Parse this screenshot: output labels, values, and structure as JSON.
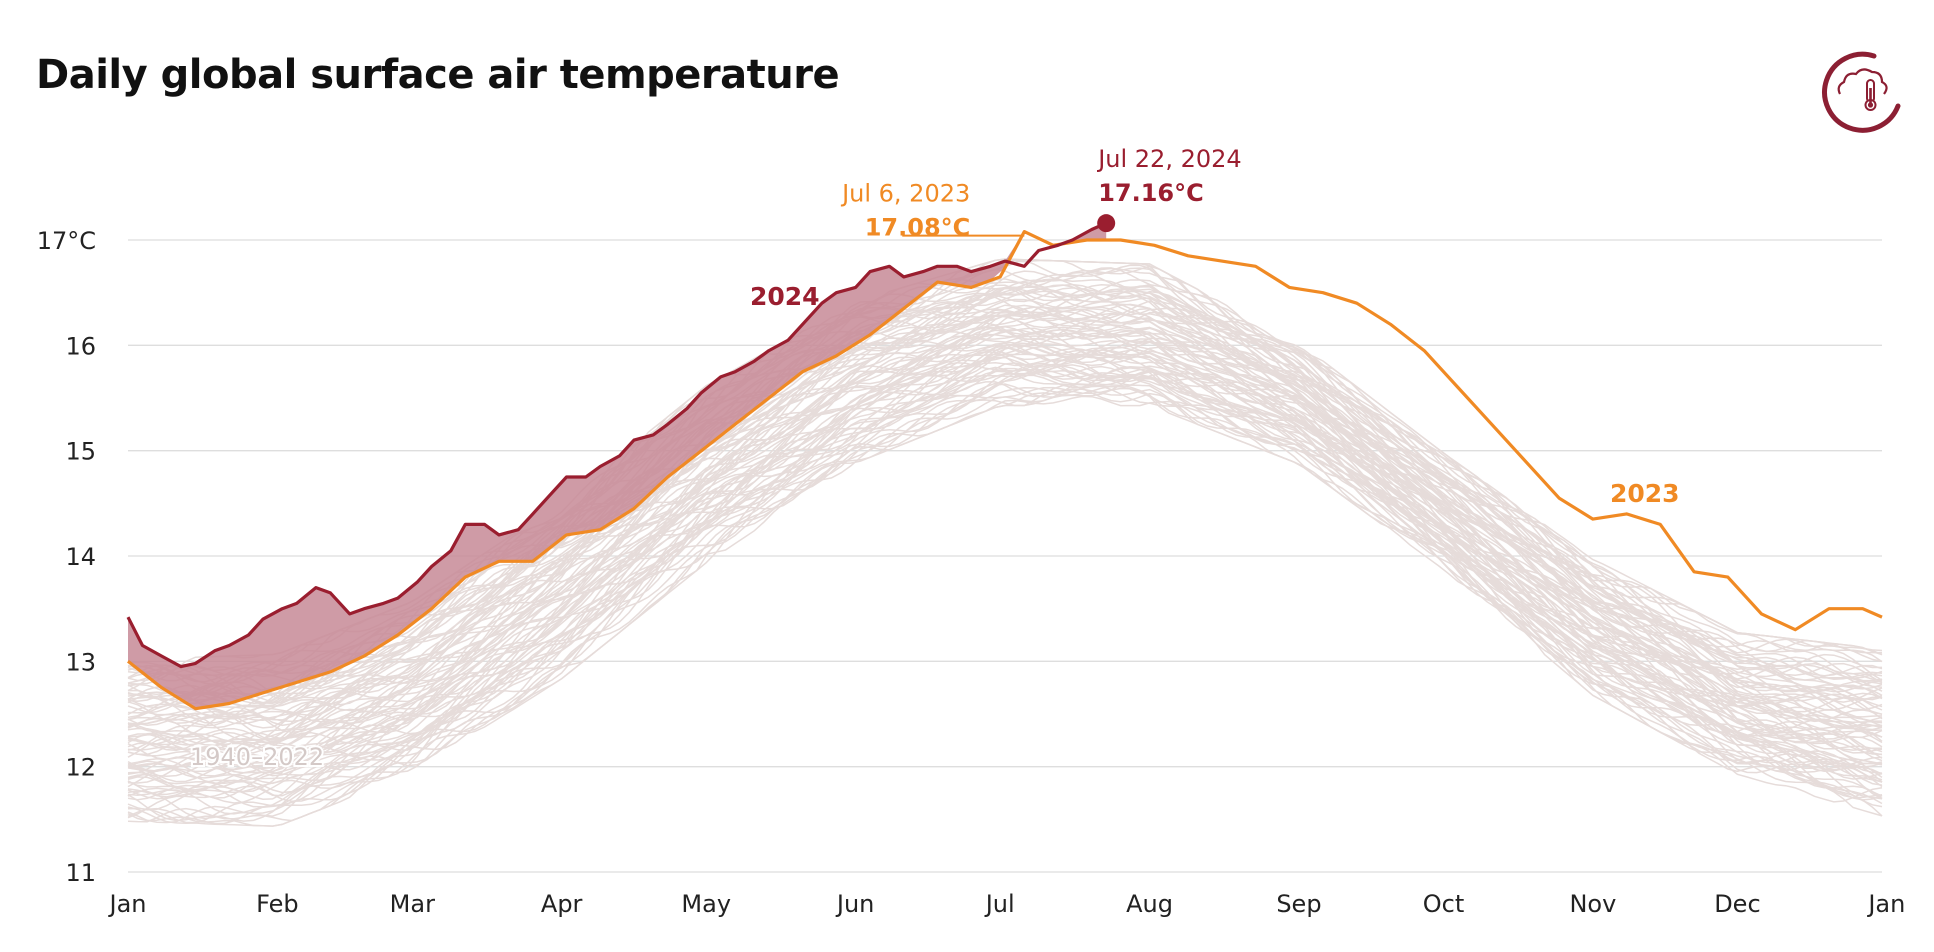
{
  "chart_data": {
    "type": "line",
    "title": "Daily global surface air temperature",
    "xlabel": "",
    "ylabel": "",
    "x_ticks": [
      "Jan",
      "Feb",
      "Mar",
      "Apr",
      "May",
      "Jun",
      "Jul",
      "Aug",
      "Sep",
      "Oct",
      "Nov",
      "Dec",
      "Jan"
    ],
    "y_ticks": [
      "11",
      "12",
      "13",
      "14",
      "15",
      "16",
      "17°C"
    ],
    "ylim": [
      11,
      17.6
    ],
    "grid": "horizontal",
    "colors": {
      "y2023": "#f08a24",
      "y2024": "#9a1e2f",
      "y2024_fill": "#c78a97",
      "historical": "#e6dcda",
      "grid": "#dedede"
    },
    "series": [
      {
        "name": "2023",
        "day_of_year": [
          1,
          8,
          15,
          22,
          29,
          36,
          43,
          50,
          57,
          64,
          71,
          78,
          85,
          92,
          99,
          106,
          113,
          120,
          127,
          134,
          141,
          148,
          155,
          162,
          169,
          176,
          182,
          187,
          193,
          200,
          207,
          214,
          221,
          228,
          235,
          242,
          249,
          256,
          263,
          270,
          277,
          284,
          291,
          298,
          305,
          312,
          319,
          326,
          333,
          340,
          347,
          354,
          361,
          365
        ],
        "values": [
          13.0,
          12.75,
          12.55,
          12.6,
          12.7,
          12.8,
          12.9,
          13.05,
          13.25,
          13.5,
          13.8,
          13.95,
          13.95,
          14.2,
          14.25,
          14.45,
          14.75,
          15.0,
          15.25,
          15.5,
          15.75,
          15.9,
          16.1,
          16.35,
          16.6,
          16.55,
          16.65,
          17.08,
          16.95,
          17.0,
          17.0,
          16.95,
          16.85,
          16.8,
          16.75,
          16.55,
          16.5,
          16.4,
          16.2,
          15.95,
          15.6,
          15.25,
          14.9,
          14.55,
          14.35,
          14.4,
          14.3,
          13.85,
          13.8,
          13.45,
          13.3,
          13.5,
          13.5,
          13.42
        ]
      },
      {
        "name": "2024",
        "day_of_year": [
          1,
          4,
          8,
          12,
          15,
          19,
          22,
          26,
          29,
          33,
          36,
          40,
          43,
          47,
          50,
          54,
          57,
          61,
          64,
          68,
          71,
          75,
          78,
          82,
          85,
          89,
          92,
          96,
          99,
          103,
          106,
          110,
          113,
          117,
          120,
          124,
          127,
          131,
          134,
          138,
          141,
          145,
          148,
          152,
          155,
          159,
          162,
          166,
          169,
          173,
          176,
          180,
          183,
          187,
          190,
          194,
          197,
          201,
          204
        ],
        "values": [
          13.42,
          13.15,
          13.05,
          12.95,
          12.98,
          13.1,
          13.15,
          13.25,
          13.4,
          13.5,
          13.55,
          13.7,
          13.65,
          13.45,
          13.5,
          13.55,
          13.6,
          13.75,
          13.9,
          14.05,
          14.3,
          14.3,
          14.2,
          14.25,
          14.4,
          14.6,
          14.75,
          14.75,
          14.85,
          14.95,
          15.1,
          15.15,
          15.25,
          15.4,
          15.55,
          15.7,
          15.75,
          15.85,
          15.95,
          16.05,
          16.2,
          16.4,
          16.5,
          16.55,
          16.7,
          16.75,
          16.65,
          16.7,
          16.75,
          16.75,
          16.7,
          16.75,
          16.8,
          16.75,
          16.9,
          16.95,
          17.0,
          17.1,
          17.16
        ]
      }
    ],
    "historical_band": {
      "label": "1940–2022",
      "line_count": 83,
      "day_of_year": [
        1,
        32,
        60,
        91,
        121,
        152,
        182,
        213,
        244,
        274,
        305,
        335,
        365
      ],
      "min_values": [
        11.45,
        11.4,
        11.9,
        12.8,
        13.9,
        14.85,
        15.4,
        15.4,
        14.85,
        13.85,
        12.65,
        11.9,
        11.5
      ],
      "max_values": [
        13.05,
        13.1,
        13.6,
        14.55,
        15.65,
        16.45,
        16.85,
        16.8,
        16.05,
        15.0,
        14.0,
        13.3,
        13.15
      ]
    },
    "annotations": [
      {
        "date": "Jul 6, 2023",
        "value": "17.08°C",
        "series": "2023",
        "day_of_year": 187,
        "y": 17.08
      },
      {
        "date": "Jul 22, 2024",
        "value": "17.16°C",
        "series": "2024",
        "day_of_year": 204,
        "y": 17.16
      }
    ]
  }
}
